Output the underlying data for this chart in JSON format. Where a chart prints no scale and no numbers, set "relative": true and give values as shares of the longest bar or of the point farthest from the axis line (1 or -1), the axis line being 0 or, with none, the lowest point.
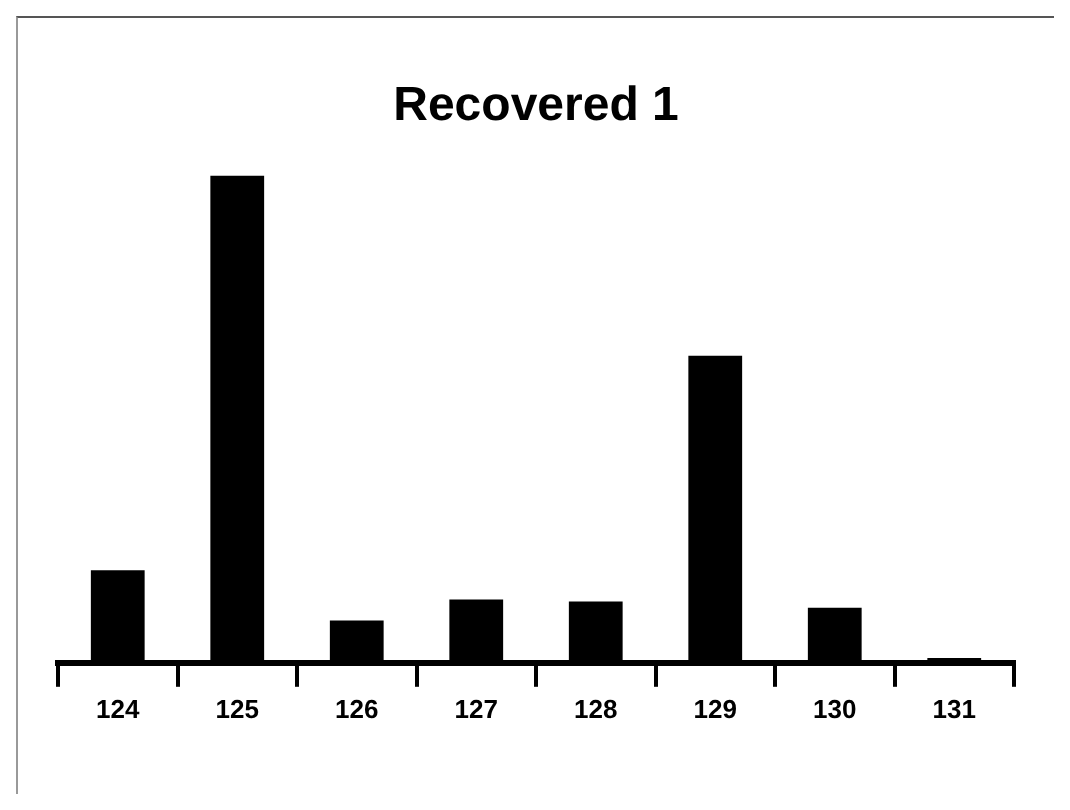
{
  "chart_data": {
    "type": "bar",
    "title": "Recovered 1",
    "categories": [
      "124",
      "125",
      "126",
      "127",
      "128",
      "129",
      "130",
      "131"
    ],
    "values": [
      0.19,
      1,
      0.087,
      0.13,
      0.126,
      0.63,
      0.113,
      0.01
    ],
    "color": "#000000",
    "relative": true,
    "grid": false,
    "legend": false
  }
}
